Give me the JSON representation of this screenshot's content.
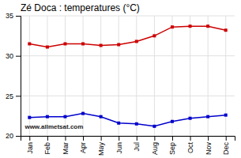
{
  "chart_data": {
    "type": "line",
    "title": "Zé Doca : temperatures (°C)",
    "categories": [
      "Jan",
      "Feb",
      "Mar",
      "Apr",
      "May",
      "Jun",
      "Jul",
      "Aug",
      "Sep",
      "Oct",
      "Nov",
      "Dec"
    ],
    "series": [
      {
        "color": "#cc0000",
        "values": [
          31.5,
          31.1,
          31.5,
          31.5,
          31.3,
          31.4,
          31.8,
          32.5,
          33.6,
          33.7,
          33.7,
          33.2
        ]
      },
      {
        "color": "#0000cc",
        "values": [
          22.3,
          22.4,
          22.4,
          22.8,
          22.4,
          21.6,
          21.5,
          21.2,
          21.8,
          22.2,
          22.4,
          22.6
        ]
      }
    ],
    "marker": "square",
    "ylim": [
      20,
      35
    ],
    "yticks": [
      20,
      25,
      30,
      35
    ],
    "grid": true,
    "annotations": [
      "www.allmetsat.com"
    ]
  }
}
